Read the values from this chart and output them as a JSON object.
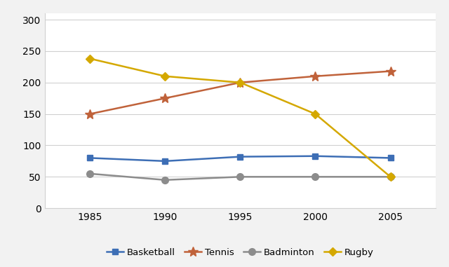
{
  "years": [
    1985,
    1990,
    1995,
    2000,
    2005
  ],
  "series": {
    "Basketball": {
      "values": [
        80,
        75,
        82,
        83,
        80
      ],
      "color": "#3d6eb5",
      "marker": "s",
      "markersize": 6
    },
    "Tennis": {
      "values": [
        150,
        175,
        200,
        210,
        218
      ],
      "color": "#c0623a",
      "marker": "*",
      "markersize": 10
    },
    "Badminton": {
      "values": [
        55,
        45,
        50,
        50,
        50
      ],
      "color": "#8c8c8c",
      "marker": "o",
      "markersize": 7
    },
    "Rugby": {
      "values": [
        238,
        210,
        200,
        150,
        50
      ],
      "color": "#d4a800",
      "marker": "D",
      "markersize": 6
    }
  },
  "ylim": [
    0,
    310
  ],
  "yticks": [
    0,
    50,
    100,
    150,
    200,
    250,
    300
  ],
  "xticks": [
    1985,
    1990,
    1995,
    2000,
    2005
  ],
  "background_color": "#f2f2f2",
  "plot_bg_color": "#ffffff",
  "grid_color": "#d0d0d0",
  "legend_order": [
    "Basketball",
    "Tennis",
    "Badminton",
    "Rugby"
  ],
  "linewidth": 1.8
}
